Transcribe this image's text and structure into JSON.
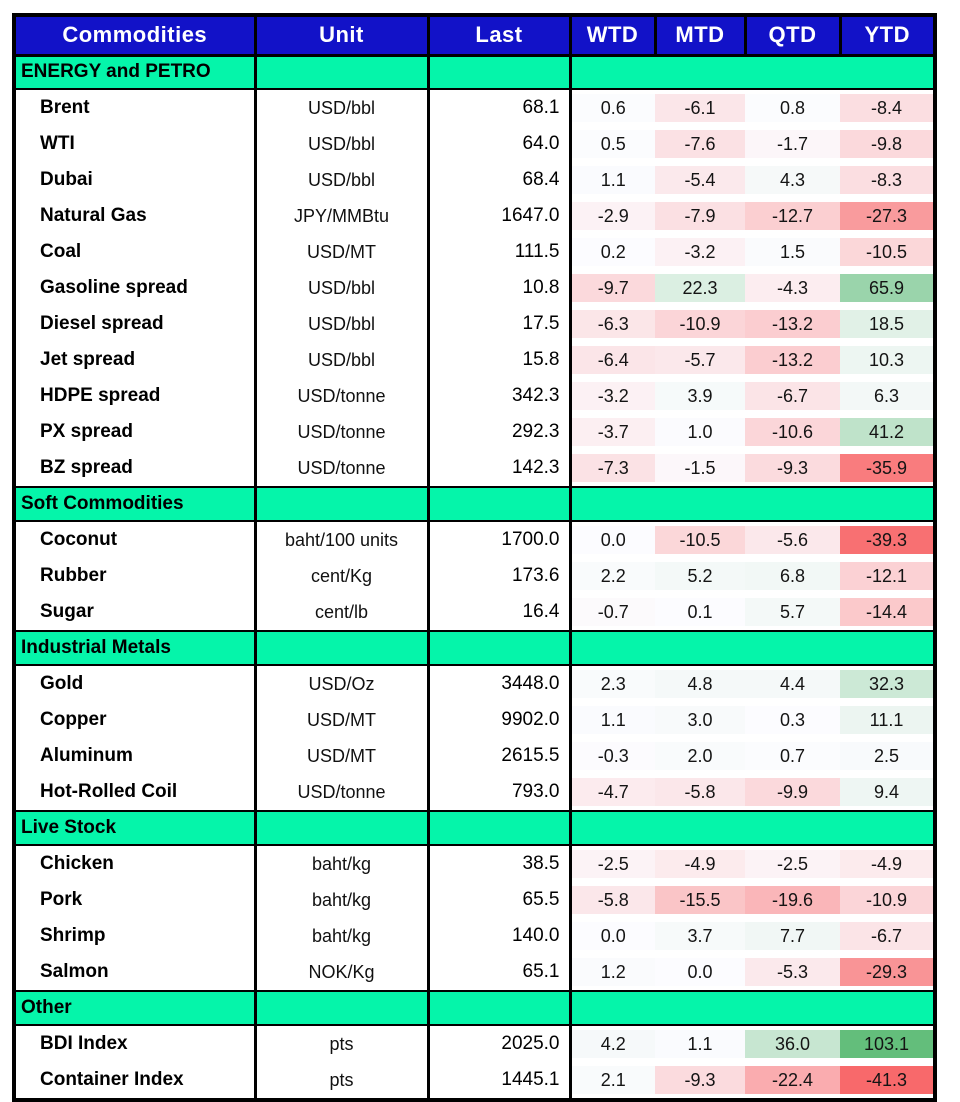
{
  "colors": {
    "header_bg": "#1212C8",
    "header_text": "#FFFFFF",
    "section_bg": "#05F5AA",
    "border": "#000000"
  },
  "chart_data": {
    "type": "table",
    "title": "Commodities performance table with red-white-green heatmap on WTD/MTD/QTD/YTD",
    "columns": [
      "Commodities",
      "Unit",
      "Last",
      "WTD",
      "MTD",
      "QTD",
      "YTD"
    ],
    "heatmap": {
      "applies_to": [
        "WTD",
        "MTD",
        "QTD",
        "YTD"
      ],
      "min": -41.3,
      "mid": 0,
      "max": 103.1,
      "min_color": "#F8696B",
      "mid_color": "#FCFCFF",
      "max_color": "#63BE7B"
    },
    "sections": [
      {
        "label": "ENERGY and PETRO",
        "rows": [
          {
            "name": "Brent",
            "unit": "USD/bbl",
            "last": "68.1",
            "wtd": "0.6",
            "mtd": "-6.1",
            "qtd": "0.8",
            "ytd": "-8.4"
          },
          {
            "name": "WTI",
            "unit": "USD/bbl",
            "last": "64.0",
            "wtd": "0.5",
            "mtd": "-7.6",
            "qtd": "-1.7",
            "ytd": "-9.8"
          },
          {
            "name": "Dubai",
            "unit": "USD/bbl",
            "last": "68.4",
            "wtd": "1.1",
            "mtd": "-5.4",
            "qtd": "4.3",
            "ytd": "-8.3"
          },
          {
            "name": "Natural Gas",
            "unit": "JPY/MMBtu",
            "last": "1647.0",
            "wtd": "-2.9",
            "mtd": "-7.9",
            "qtd": "-12.7",
            "ytd": "-27.3"
          },
          {
            "name": "Coal",
            "unit": "USD/MT",
            "last": "111.5",
            "wtd": "0.2",
            "mtd": "-3.2",
            "qtd": "1.5",
            "ytd": "-10.5"
          },
          {
            "name": "Gasoline spread",
            "unit": "USD/bbl",
            "last": "10.8",
            "wtd": "-9.7",
            "mtd": "22.3",
            "qtd": "-4.3",
            "ytd": "65.9"
          },
          {
            "name": "Diesel spread",
            "unit": "USD/bbl",
            "last": "17.5",
            "wtd": "-6.3",
            "mtd": "-10.9",
            "qtd": "-13.2",
            "ytd": "18.5"
          },
          {
            "name": "Jet spread",
            "unit": "USD/bbl",
            "last": "15.8",
            "wtd": "-6.4",
            "mtd": "-5.7",
            "qtd": "-13.2",
            "ytd": "10.3"
          },
          {
            "name": "HDPE spread",
            "unit": "USD/tonne",
            "last": "342.3",
            "wtd": "-3.2",
            "mtd": "3.9",
            "qtd": "-6.7",
            "ytd": "6.3"
          },
          {
            "name": "PX spread",
            "unit": "USD/tonne",
            "last": "292.3",
            "wtd": "-3.7",
            "mtd": "1.0",
            "qtd": "-10.6",
            "ytd": "41.2"
          },
          {
            "name": "BZ spread",
            "unit": "USD/tonne",
            "last": "142.3",
            "wtd": "-7.3",
            "mtd": "-1.5",
            "qtd": "-9.3",
            "ytd": "-35.9"
          }
        ]
      },
      {
        "label": "Soft Commodities",
        "rows": [
          {
            "name": "Coconut",
            "unit": "baht/100 units",
            "last": "1700.0",
            "wtd": "0.0",
            "mtd": "-10.5",
            "qtd": "-5.6",
            "ytd": "-39.3"
          },
          {
            "name": "Rubber",
            "unit": "cent/Kg",
            "last": "173.6",
            "wtd": "2.2",
            "mtd": "5.2",
            "qtd": "6.8",
            "ytd": "-12.1"
          },
          {
            "name": "Sugar",
            "unit": "cent/lb",
            "last": "16.4",
            "wtd": "-0.7",
            "mtd": "0.1",
            "qtd": "5.7",
            "ytd": "-14.4"
          }
        ]
      },
      {
        "label": "Industrial Metals",
        "rows": [
          {
            "name": "Gold",
            "unit": "USD/Oz",
            "last": "3448.0",
            "wtd": "2.3",
            "mtd": "4.8",
            "qtd": "4.4",
            "ytd": "32.3"
          },
          {
            "name": "Copper",
            "unit": "USD/MT",
            "last": "9902.0",
            "wtd": "1.1",
            "mtd": "3.0",
            "qtd": "0.3",
            "ytd": "11.1"
          },
          {
            "name": "Aluminum",
            "unit": "USD/MT",
            "last": "2615.5",
            "wtd": "-0.3",
            "mtd": "2.0",
            "qtd": "0.7",
            "ytd": "2.5"
          },
          {
            "name": "Hot-Rolled Coil",
            "unit": "USD/tonne",
            "last": "793.0",
            "wtd": "-4.7",
            "mtd": "-5.8",
            "qtd": "-9.9",
            "ytd": "9.4"
          }
        ]
      },
      {
        "label": "Live Stock",
        "rows": [
          {
            "name": "Chicken",
            "unit": "baht/kg",
            "last": "38.5",
            "wtd": "-2.5",
            "mtd": "-4.9",
            "qtd": "-2.5",
            "ytd": "-4.9"
          },
          {
            "name": "Pork",
            "unit": "baht/kg",
            "last": "65.5",
            "wtd": "-5.8",
            "mtd": "-15.5",
            "qtd": "-19.6",
            "ytd": "-10.9"
          },
          {
            "name": "Shrimp",
            "unit": "baht/kg",
            "last": "140.0",
            "wtd": "0.0",
            "mtd": "3.7",
            "qtd": "7.7",
            "ytd": "-6.7"
          },
          {
            "name": "Salmon",
            "unit": "NOK/Kg",
            "last": "65.1",
            "wtd": "1.2",
            "mtd": "0.0",
            "qtd": "-5.3",
            "ytd": "-29.3"
          }
        ]
      },
      {
        "label": "Other",
        "rows": [
          {
            "name": "BDI Index",
            "unit": "pts",
            "last": "2025.0",
            "wtd": "4.2",
            "mtd": "1.1",
            "qtd": "36.0",
            "ytd": "103.1"
          },
          {
            "name": "Container Index",
            "unit": "pts",
            "last": "1445.1",
            "wtd": "2.1",
            "mtd": "-9.3",
            "qtd": "-22.4",
            "ytd": "-41.3"
          }
        ]
      }
    ]
  }
}
